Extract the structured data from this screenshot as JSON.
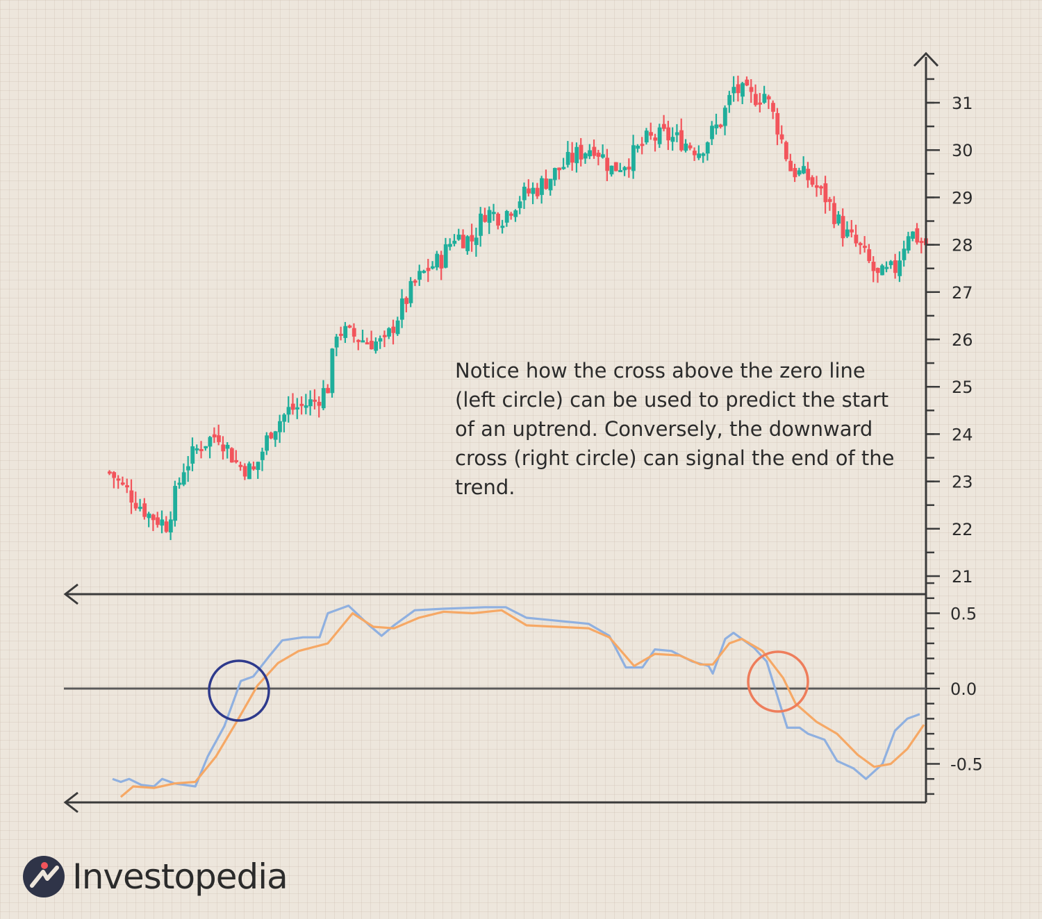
{
  "colors": {
    "up": "#1fae9b",
    "down": "#f2545b",
    "axis": "#3a3a3a",
    "macd_line": "#8fb0e0",
    "signal_line": "#f6a865",
    "left_circle": "#2e3a8c",
    "right_circle": "#ee7d5b",
    "text": "#2b2b2b"
  },
  "annotation": "Notice how the cross above the zero line (left circle) can be used to predict the start of an uptrend. Conversely, the downward cross (right circle) can signal the end of the trend.",
  "brand": {
    "name": "Investopedia",
    "icon": "investopedia-logo-icon"
  },
  "chart_data": [
    {
      "type": "candlestick",
      "y_ticks": [
        21,
        22,
        23,
        24,
        25,
        26,
        27,
        28,
        29,
        30,
        31
      ],
      "ylim": [
        21,
        31.8
      ],
      "anchor_path": [
        [
          0,
          23.2
        ],
        [
          4,
          22.8
        ],
        [
          9,
          22.3
        ],
        [
          13,
          22.1
        ],
        [
          17,
          23.3
        ],
        [
          21,
          23.8
        ],
        [
          25,
          24.0
        ],
        [
          29,
          23.4
        ],
        [
          33,
          23.2
        ],
        [
          37,
          24.1
        ],
        [
          41,
          24.5
        ],
        [
          47,
          24.7
        ],
        [
          50,
          25.0
        ],
        [
          52,
          26.2
        ],
        [
          58,
          26.0
        ],
        [
          63,
          25.9
        ],
        [
          66,
          26.5
        ],
        [
          70,
          27.2
        ],
        [
          73,
          27.5
        ],
        [
          76,
          27.7
        ],
        [
          79,
          28.2
        ],
        [
          83,
          28.1
        ],
        [
          86,
          28.7
        ],
        [
          90,
          28.6
        ],
        [
          94,
          29.0
        ],
        [
          98,
          29.2
        ],
        [
          103,
          29.6
        ],
        [
          107,
          29.9
        ],
        [
          111,
          30.1
        ],
        [
          115,
          29.6
        ],
        [
          119,
          29.8
        ],
        [
          123,
          30.2
        ],
        [
          127,
          30.3
        ],
        [
          131,
          30.2
        ],
        [
          135,
          30.0
        ],
        [
          140,
          30.6
        ],
        [
          143,
          31.3
        ],
        [
          147,
          31.1
        ],
        [
          150,
          31.2
        ],
        [
          153,
          30.5
        ],
        [
          156,
          29.6
        ],
        [
          160,
          29.4
        ],
        [
          164,
          29.0
        ],
        [
          168,
          28.3
        ],
        [
          172,
          27.9
        ],
        [
          176,
          27.3
        ],
        [
          180,
          27.5
        ],
        [
          183,
          28.3
        ],
        [
          187,
          28.0
        ]
      ],
      "x_count": 188
    },
    {
      "type": "line",
      "y_ticks": [
        0.5,
        0.0,
        -0.5
      ],
      "ylim": [
        -0.78,
        0.78
      ],
      "series": [
        {
          "color": "macd_line",
          "points": [
            [
              0,
              -0.6
            ],
            [
              2,
              -0.62
            ],
            [
              4,
              -0.6
            ],
            [
              7,
              -0.64
            ],
            [
              10,
              -0.65
            ],
            [
              12,
              -0.6
            ],
            [
              15,
              -0.63
            ],
            [
              20,
              -0.65
            ],
            [
              23,
              -0.45
            ],
            [
              27,
              -0.25
            ],
            [
              31,
              0.05
            ],
            [
              34,
              0.08
            ],
            [
              38,
              0.22
            ],
            [
              41,
              0.32
            ],
            [
              46,
              0.34
            ],
            [
              50,
              0.34
            ],
            [
              52,
              0.5
            ],
            [
              57,
              0.55
            ],
            [
              62,
              0.42
            ],
            [
              65,
              0.35
            ],
            [
              68,
              0.42
            ],
            [
              73,
              0.52
            ],
            [
              80,
              0.53
            ],
            [
              90,
              0.54
            ],
            [
              95,
              0.54
            ],
            [
              100,
              0.47
            ],
            [
              115,
              0.43
            ],
            [
              120,
              0.35
            ],
            [
              124,
              0.14
            ],
            [
              128,
              0.14
            ],
            [
              131,
              0.26
            ],
            [
              135,
              0.25
            ],
            [
              140,
              0.18
            ],
            [
              144,
              0.15
            ],
            [
              145,
              0.1
            ],
            [
              148,
              0.33
            ],
            [
              150,
              0.37
            ],
            [
              155,
              0.27
            ],
            [
              158,
              0.18
            ],
            [
              163,
              -0.26
            ],
            [
              166,
              -0.26
            ],
            [
              168,
              -0.3
            ],
            [
              172,
              -0.34
            ],
            [
              175,
              -0.48
            ],
            [
              179,
              -0.53
            ],
            [
              182,
              -0.6
            ],
            [
              186,
              -0.5
            ],
            [
              189,
              -0.28
            ],
            [
              192,
              -0.2
            ],
            [
              195,
              -0.17
            ]
          ]
        },
        {
          "color": "signal_line",
          "points": [
            [
              2,
              -0.72
            ],
            [
              5,
              -0.65
            ],
            [
              10,
              -0.66
            ],
            [
              15,
              -0.63
            ],
            [
              20,
              -0.62
            ],
            [
              25,
              -0.45
            ],
            [
              30,
              -0.22
            ],
            [
              35,
              0.02
            ],
            [
              40,
              0.17
            ],
            [
              45,
              0.25
            ],
            [
              52,
              0.3
            ],
            [
              58,
              0.5
            ],
            [
              63,
              0.41
            ],
            [
              68,
              0.4
            ],
            [
              74,
              0.47
            ],
            [
              80,
              0.51
            ],
            [
              87,
              0.5
            ],
            [
              94,
              0.52
            ],
            [
              100,
              0.42
            ],
            [
              115,
              0.4
            ],
            [
              120,
              0.34
            ],
            [
              126,
              0.15
            ],
            [
              131,
              0.23
            ],
            [
              137,
              0.22
            ],
            [
              142,
              0.16
            ],
            [
              145,
              0.16
            ],
            [
              149,
              0.3
            ],
            [
              152,
              0.33
            ],
            [
              157,
              0.25
            ],
            [
              162,
              0.07
            ],
            [
              165,
              -0.1
            ],
            [
              170,
              -0.22
            ],
            [
              175,
              -0.3
            ],
            [
              180,
              -0.44
            ],
            [
              184,
              -0.52
            ],
            [
              188,
              -0.5
            ],
            [
              192,
              -0.4
            ],
            [
              196,
              -0.24
            ]
          ]
        }
      ],
      "annotations": [
        "crossover circle near zero line (left)",
        "crossover circle near zero line (right)"
      ]
    }
  ]
}
